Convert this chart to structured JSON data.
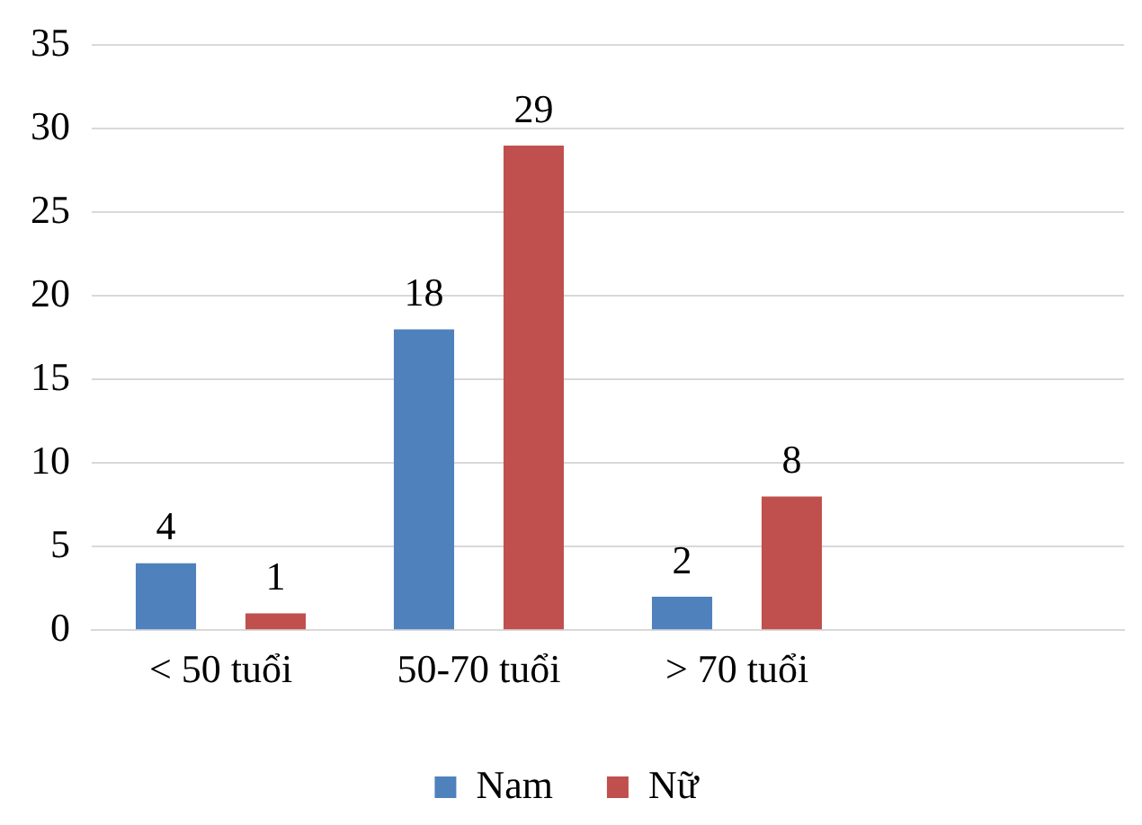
{
  "chart_data": {
    "type": "bar",
    "categories": [
      "< 50 tuổi",
      "50-70 tuổi",
      "> 70 tuổi",
      null
    ],
    "series": [
      {
        "name": "Nam",
        "color": "#4f81bd",
        "values": [
          4,
          18,
          2,
          null
        ]
      },
      {
        "name": "Nữ",
        "color": "#c0504d",
        "values": [
          1,
          29,
          8,
          null
        ]
      }
    ],
    "ylim": [
      0,
      35
    ],
    "yticks": [
      0,
      5,
      10,
      15,
      20,
      25,
      30,
      35
    ],
    "grid": "y",
    "legend": "bottom",
    "data_labels": true
  }
}
